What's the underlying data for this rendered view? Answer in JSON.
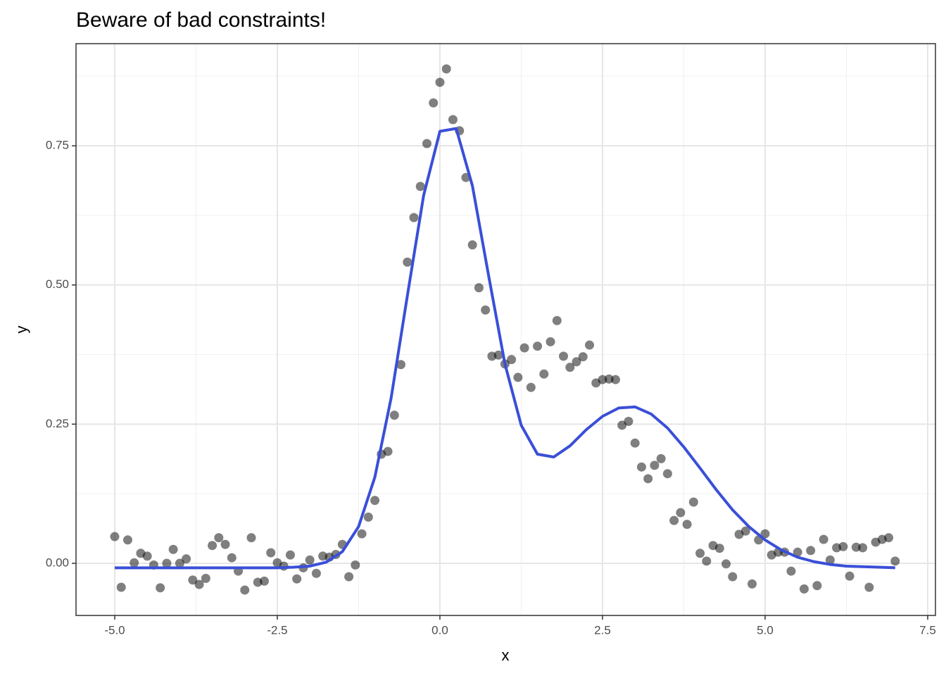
{
  "chart_data": {
    "type": "scatter",
    "title": "Beware of bad constraints!",
    "xlabel": "x",
    "ylabel": "y",
    "xlim": [
      -5.595,
      7.619
    ],
    "ylim": [
      -0.0936,
      0.9334
    ],
    "xticks": [
      {
        "value": -5,
        "label": "-5.0"
      },
      {
        "value": -2.5,
        "label": "-2.5"
      },
      {
        "value": 0,
        "label": "0.0"
      },
      {
        "value": 2.5,
        "label": "2.5"
      },
      {
        "value": 5,
        "label": "5.0"
      },
      {
        "value": 7.5,
        "label": "7.5"
      }
    ],
    "yticks": [
      {
        "value": 0,
        "label": "0.00"
      },
      {
        "value": 0.25,
        "label": "0.25"
      },
      {
        "value": 0.5,
        "label": "0.50"
      },
      {
        "value": 0.75,
        "label": "0.75"
      }
    ],
    "x_minor_grid": [
      -3.75,
      -1.25,
      1.25,
      3.75,
      6.25
    ],
    "y_minor_grid": [
      0.125,
      0.375,
      0.625,
      0.875
    ],
    "grid": true,
    "series": [
      {
        "type": "scatter",
        "color": "#000000",
        "x": [
          -5,
          -4.9,
          -4.8,
          -4.7,
          -4.6,
          -4.5,
          -4.4,
          -4.3,
          -4.2,
          -4.1,
          -4,
          -3.9,
          -3.8,
          -3.7,
          -3.6,
          -3.5,
          -3.4,
          -3.3,
          -3.2,
          -3.1,
          -3,
          -2.9,
          -2.8,
          -2.7,
          -2.6,
          -2.5,
          -2.4,
          -2.3,
          -2.2,
          -2.1,
          -2,
          -1.9,
          -1.8,
          -1.7,
          -1.6,
          -1.5,
          -1.4,
          -1.3,
          -1.2,
          -1.1,
          -1,
          -0.9,
          -0.8,
          -0.7,
          -0.6,
          -0.5,
          -0.4,
          -0.3,
          -0.2,
          -0.1,
          0,
          0.1,
          0.2,
          0.3,
          0.4,
          0.5,
          0.6,
          0.7,
          0.8,
          0.9,
          1,
          1.1,
          1.2,
          1.3,
          1.4,
          1.5,
          1.6,
          1.7,
          1.8,
          1.9,
          2,
          2.1,
          2.2,
          2.3,
          2.4,
          2.5,
          2.6,
          2.7,
          2.8,
          2.9,
          3,
          3.1,
          3.2,
          3.3,
          3.4,
          3.5,
          3.6,
          3.7,
          3.8,
          3.9,
          4,
          4.1,
          4.2,
          4.3,
          4.4,
          4.5,
          4.6,
          4.7,
          4.8,
          4.9,
          5,
          5.1,
          5.2,
          5.3,
          5.4,
          5.5,
          5.6,
          5.7,
          5.8,
          5.9,
          6,
          6.1,
          6.2,
          6.3,
          6.4,
          6.5,
          6.6,
          6.7,
          6.8,
          6.9,
          7
        ],
        "values": [
          0.048,
          -0.043,
          0.042,
          0.001,
          0.018,
          0.013,
          -0.003,
          -0.044,
          0,
          0.025,
          0,
          0.008,
          -0.03,
          -0.038,
          -0.027,
          0.032,
          0.046,
          0.034,
          0.01,
          -0.014,
          -0.048,
          0.046,
          -0.034,
          -0.032,
          0.019,
          0.001,
          -0.005,
          0.015,
          -0.028,
          -0.008,
          0.006,
          -0.018,
          0.013,
          0.011,
          0.016,
          0.034,
          -0.024,
          -0.003,
          0.053,
          0.083,
          0.113,
          0.196,
          0.201,
          0.266,
          0.357,
          0.541,
          0.621,
          0.677,
          0.754,
          0.827,
          0.864,
          0.888,
          0.797,
          0.777,
          0.693,
          0.572,
          0.495,
          0.455,
          0.372,
          0.374,
          0.358,
          0.366,
          0.334,
          0.387,
          0.316,
          0.39,
          0.34,
          0.398,
          0.436,
          0.372,
          0.352,
          0.362,
          0.371,
          0.392,
          0.324,
          0.33,
          0.331,
          0.33,
          0.248,
          0.255,
          0.216,
          0.173,
          0.152,
          0.176,
          0.188,
          0.161,
          0.077,
          0.091,
          0.07,
          0.11,
          0.018,
          0.004,
          0.032,
          0.027,
          -0.001,
          -0.024,
          0.052,
          0.058,
          -0.037,
          0.042,
          0.053,
          0.015,
          0.02,
          0.02,
          -0.014,
          0.02,
          -0.046,
          0.023,
          -0.04,
          0.043,
          0.006,
          0.028,
          0.03,
          -0.023,
          0.029,
          0.028,
          -0.043,
          0.038,
          0.043,
          0.046,
          0.004
        ]
      },
      {
        "type": "line",
        "color": "#3a4fd8",
        "x": [
          -5,
          -4.75,
          -4.5,
          -4.25,
          -4,
          -3.75,
          -3.5,
          -3.25,
          -3,
          -2.75,
          -2.5,
          -2.25,
          -2,
          -1.75,
          -1.5,
          -1.25,
          -1,
          -0.75,
          -0.5,
          -0.25,
          0,
          0.25,
          0.5,
          0.75,
          1,
          1.25,
          1.5,
          1.75,
          2,
          2.25,
          2.5,
          2.75,
          3,
          3.25,
          3.5,
          3.75,
          4,
          4.25,
          4.5,
          4.75,
          5,
          5.25,
          5.5,
          5.75,
          6,
          6.25,
          6.5,
          6.75,
          7
        ],
        "values": [
          -0.008,
          -0.008,
          -0.008,
          -0.008,
          -0.008,
          -0.008,
          -0.008,
          -0.008,
          -0.008,
          -0.008,
          -0.008,
          -0.007,
          -0.005,
          0.002,
          0.021,
          0.066,
          0.155,
          0.297,
          0.481,
          0.661,
          0.776,
          0.781,
          0.678,
          0.516,
          0.358,
          0.248,
          0.196,
          0.191,
          0.211,
          0.24,
          0.264,
          0.279,
          0.281,
          0.268,
          0.243,
          0.209,
          0.171,
          0.132,
          0.096,
          0.066,
          0.042,
          0.024,
          0.011,
          0.003,
          -0.002,
          -0.005,
          -0.006,
          -0.007,
          -0.008
        ]
      }
    ]
  }
}
